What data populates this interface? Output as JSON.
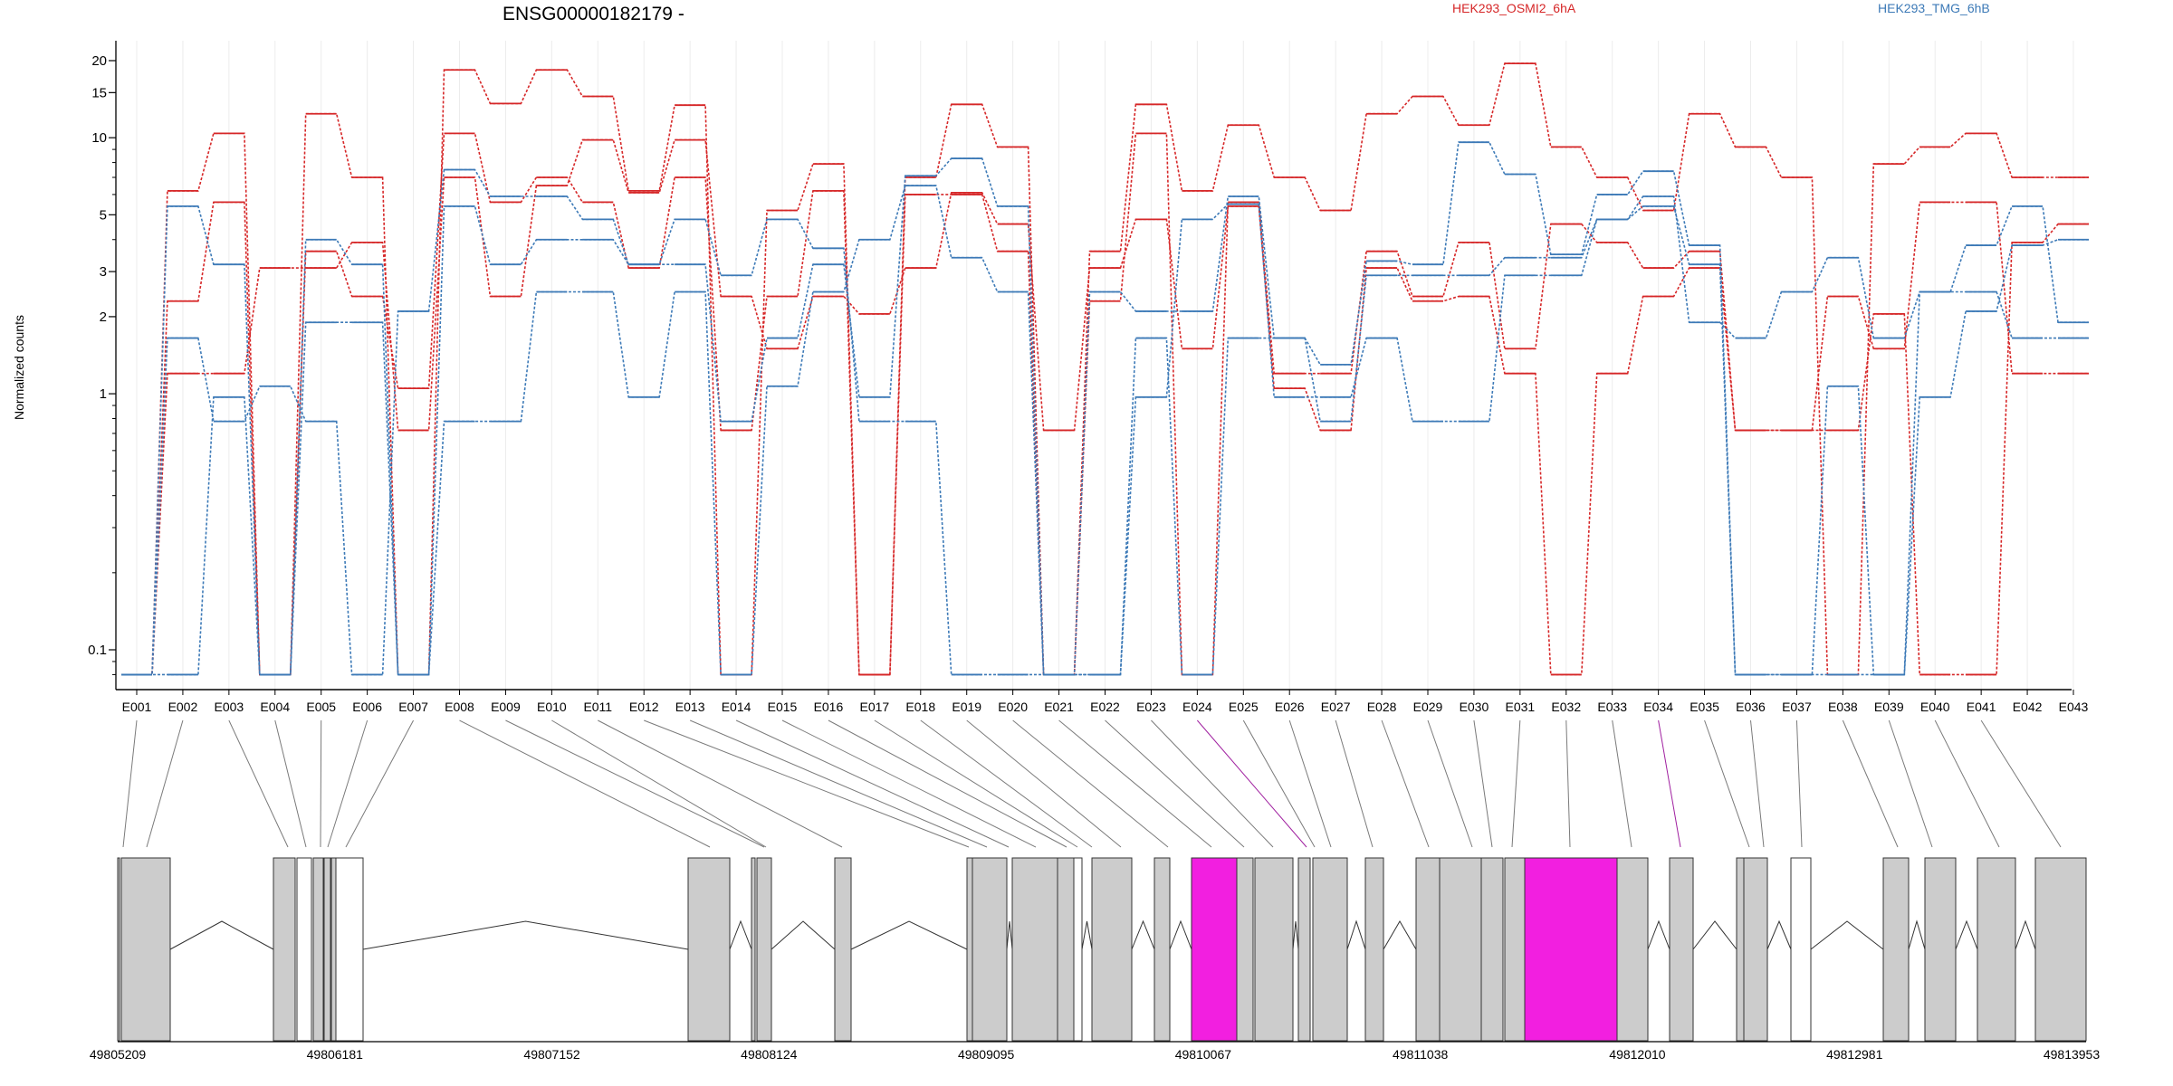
{
  "chart_data": {
    "type": "line",
    "title": "ENSG00000182179 -",
    "ylabel": "Normalized counts",
    "xlabel": "",
    "yscale": "log",
    "ylim": [
      0.07,
      22
    ],
    "yticks": [
      0.1,
      1,
      2,
      3,
      5,
      10,
      15,
      20
    ],
    "grid": "vertical",
    "legend_position": "top-right",
    "colors": {
      "red": "#d62728",
      "blue": "#3d7ab7",
      "highlight": "#f21fe0",
      "exon_fill": "#cccccc"
    },
    "categories": [
      "E001",
      "E002",
      "E003",
      "E004",
      "E005",
      "E006",
      "E007",
      "E008",
      "E009",
      "E010",
      "E011",
      "E012",
      "E013",
      "E014",
      "E015",
      "E016",
      "E017",
      "E018",
      "E019",
      "E020",
      "E021",
      "E022",
      "E023",
      "E024",
      "E025",
      "E026",
      "E027",
      "E028",
      "E029",
      "E030",
      "E031",
      "E032",
      "E033",
      "E034",
      "E035",
      "E036",
      "E037",
      "E038",
      "E039",
      "E040",
      "E041",
      "E042",
      "E043"
    ],
    "highlighted_bins": [
      "E024",
      "E034"
    ],
    "series": [
      {
        "name": "HEK293_OSMI2_6hA",
        "color": "#d62728",
        "values": [
          0.08,
          6.2,
          10.4,
          0.08,
          12.4,
          7.0,
          0.08,
          18.4,
          13.6,
          18.4,
          14.5,
          6.2,
          13.4,
          0.08,
          5.2,
          7.9,
          0.08,
          7.0,
          13.5,
          9.2,
          0.08,
          3.6,
          13.5,
          6.2,
          11.2,
          7.0,
          5.2,
          12.4,
          14.5,
          11.2,
          19.5,
          9.2,
          7.0,
          5.2,
          12.4,
          9.2,
          7.0,
          0.08,
          7.9,
          9.2,
          10.4,
          7.0,
          7.0
        ]
      },
      {
        "name": "HEK293_OSMI2_6hA",
        "color": "#d62728",
        "values": [
          0.08,
          2.3,
          5.6,
          0.08,
          3.6,
          2.4,
          1.05,
          10.4,
          5.6,
          7.0,
          5.6,
          3.1,
          7.0,
          0.72,
          2.4,
          6.2,
          0.08,
          6.0,
          6.0,
          3.6,
          0.08,
          2.3,
          10.4,
          0.08,
          5.6,
          1.2,
          1.2,
          3.6,
          2.4,
          3.9,
          1.5,
          4.6,
          3.9,
          3.1,
          3.6,
          0.72,
          0.72,
          2.4,
          1.5,
          5.6,
          5.6,
          1.2,
          1.2
        ]
      },
      {
        "name": "HEK293_OSMI2_6hA",
        "color": "#d62728",
        "values": [
          0.08,
          1.2,
          1.2,
          3.1,
          3.1,
          3.9,
          0.72,
          7.0,
          2.4,
          6.5,
          9.8,
          6.1,
          9.8,
          2.4,
          1.5,
          2.4,
          2.05,
          3.1,
          6.1,
          4.6,
          0.72,
          3.1,
          4.8,
          1.5,
          5.4,
          1.05,
          0.72,
          3.1,
          2.3,
          2.4,
          1.2,
          0.08,
          1.2,
          2.4,
          3.1,
          0.72,
          0.72,
          0.72,
          2.05,
          0.08,
          0.08,
          3.9,
          4.6
        ]
      },
      {
        "name": "HEK293_TMG_6hB",
        "color": "#3d7ab7",
        "values": [
          0.08,
          1.65,
          0.78,
          1.07,
          0.78,
          0.08,
          2.1,
          7.5,
          5.9,
          5.9,
          4.8,
          3.2,
          3.2,
          0.78,
          1.65,
          3.2,
          0.97,
          7.1,
          8.3,
          5.4,
          0.08,
          2.5,
          2.1,
          2.1,
          5.9,
          1.65,
          1.3,
          3.3,
          3.2,
          9.6,
          7.2,
          3.5,
          6.0,
          7.4,
          3.8,
          0.08,
          0.08,
          0.08,
          0.08,
          2.5,
          3.8,
          5.4,
          1.9
        ]
      },
      {
        "name": "HEK293_TMG_6hB",
        "color": "#3d7ab7",
        "values": [
          0.08,
          5.4,
          3.2,
          0.08,
          4.0,
          3.2,
          0.08,
          5.4,
          3.2,
          4.0,
          4.0,
          3.2,
          4.8,
          2.9,
          4.8,
          3.7,
          0.78,
          0.78,
          0.08,
          0.08,
          0.08,
          0.08,
          0.97,
          4.8,
          5.5,
          0.97,
          0.97,
          1.65,
          0.78,
          0.78,
          2.9,
          2.9,
          4.8,
          5.4,
          3.2,
          0.08,
          0.08,
          1.07,
          0.08,
          0.97,
          2.1,
          3.8,
          4.0
        ]
      },
      {
        "name": "HEK293_TMG_6hB",
        "color": "#3d7ab7",
        "values": [
          0.08,
          0.08,
          0.97,
          0.08,
          1.9,
          1.9,
          0.08,
          0.78,
          0.78,
          2.5,
          2.5,
          0.97,
          2.5,
          0.08,
          1.07,
          2.5,
          4.0,
          6.5,
          3.4,
          2.5,
          0.08,
          0.08,
          1.65,
          0.08,
          1.65,
          1.65,
          0.78,
          2.9,
          2.9,
          2.9,
          3.4,
          3.4,
          4.8,
          5.9,
          1.9,
          1.65,
          2.5,
          3.4,
          1.65,
          2.5,
          2.5,
          1.65,
          1.65
        ]
      }
    ],
    "legend": [
      {
        "label": "HEK293_OSMI2_6hA",
        "color": "#d62728"
      },
      {
        "label": "HEK293_TMG_6hB",
        "color": "#3d7ab7"
      }
    ],
    "gene_model": {
      "coordinate_labels": [
        "49805209",
        "49806181",
        "49807152",
        "49808124",
        "49809095",
        "49810067",
        "49811038",
        "49812010",
        "49812981",
        "49813953"
      ],
      "coordinate_range": [
        49805209,
        49813953
      ]
    }
  }
}
